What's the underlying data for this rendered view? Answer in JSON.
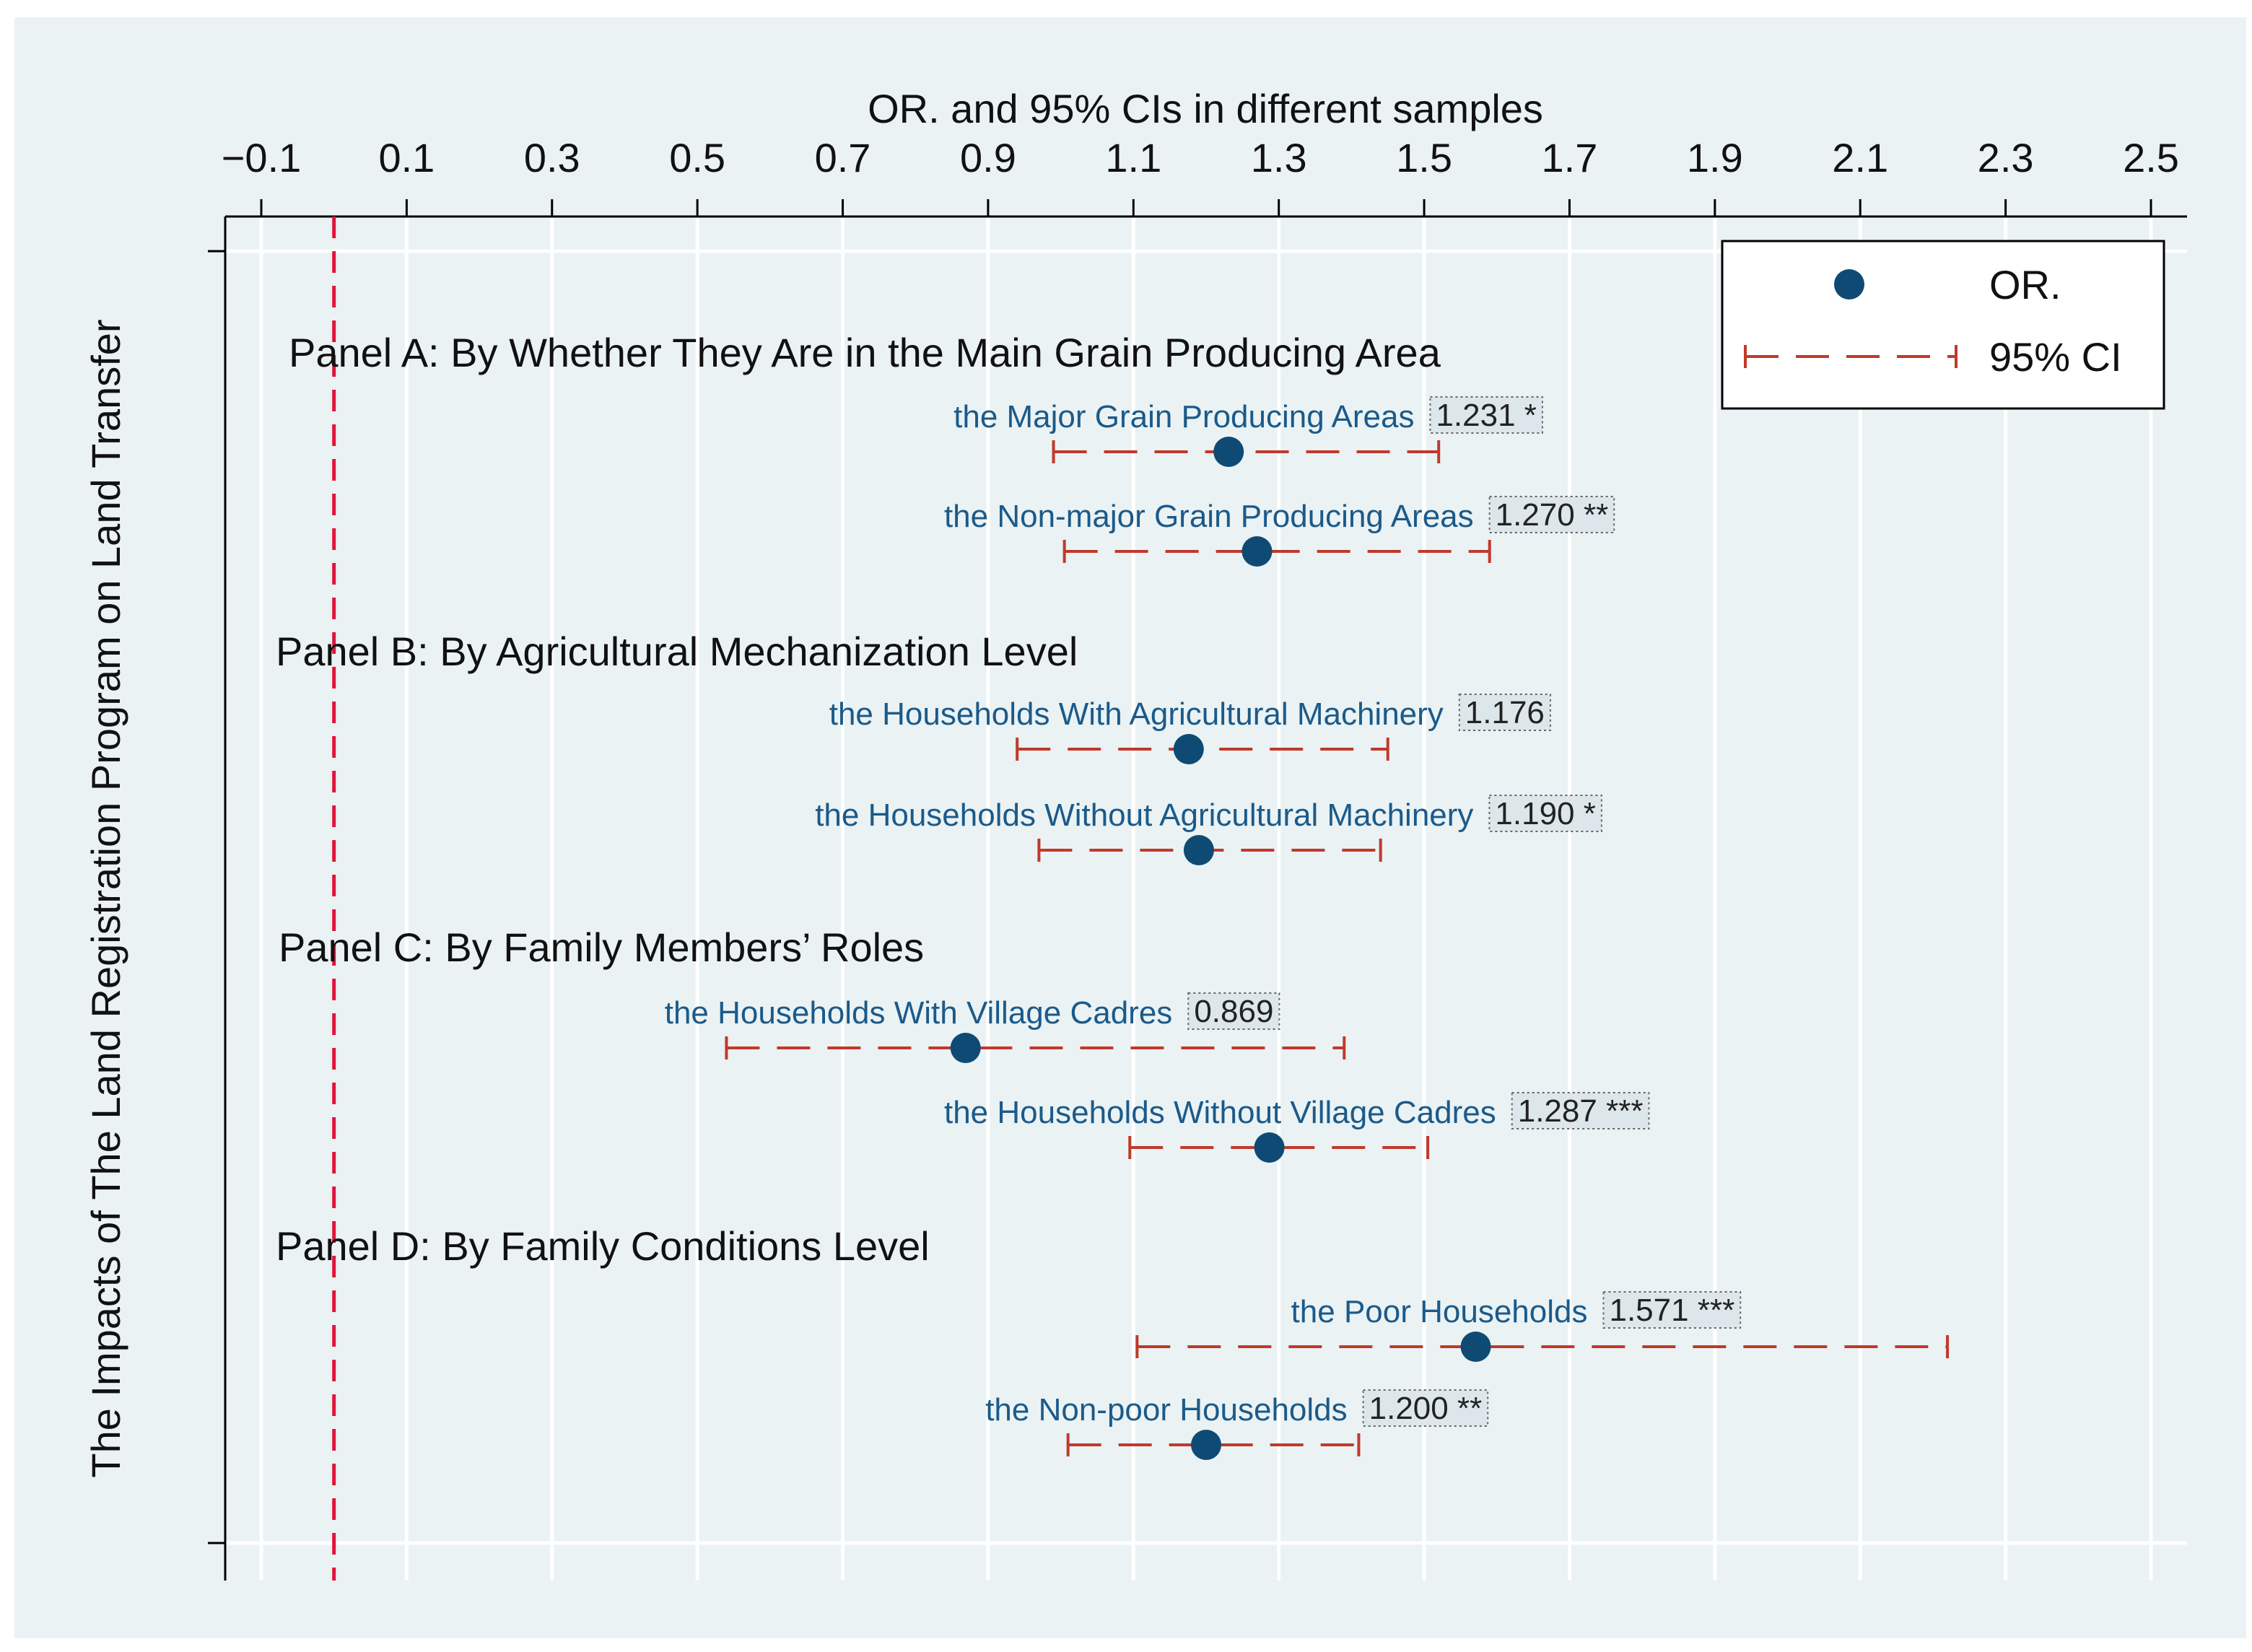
{
  "chart_data": {
    "type": "scatter",
    "subtype": "forest-plot (odds ratios with 95% confidence intervals)",
    "title": "OR. and 95% CIs in different samples",
    "ylabel": "The Impacts of The Land Registration Program on Land Transfer",
    "xlim": [
      -0.15,
      2.5
    ],
    "x_ticks": [
      "−0.1",
      "0.1",
      "0.3",
      "0.5",
      "0.7",
      "0.9",
      "1.1",
      "1.3",
      "1.5",
      "1.7",
      "1.9",
      "2.1",
      "2.3",
      "2.5"
    ],
    "x_tick_values": [
      -0.1,
      0.1,
      0.3,
      0.5,
      0.7,
      0.9,
      1.1,
      1.3,
      1.5,
      1.7,
      1.9,
      2.1,
      2.3,
      2.5
    ],
    "reference_line": 0,
    "legend": {
      "position": "top-right",
      "entries": [
        {
          "label": "OR.",
          "marker": "circle"
        },
        {
          "label": "95% CI",
          "marker": "dashed-capped-line"
        }
      ]
    },
    "colors": {
      "point": "#0e4a74",
      "ci": "#c0392b",
      "ref_line": "#e0143c",
      "row_label": "#1b5a8a",
      "plot_bg": "#eaf2f3",
      "outer_bg": "#eaf2f3",
      "grid": "#ffffff"
    },
    "panels": [
      {
        "title": "Panel A: By Whether They Are in the Main Grain Producing Area",
        "rows": [
          {
            "label": "the Major Grain Producing Areas",
            "or": 1.231,
            "annotation": "1.231 *",
            "ci_low": 0.99,
            "ci_high": 1.52
          },
          {
            "label": "the Non-major Grain Producing Areas",
            "or": 1.27,
            "annotation": "1.270 **",
            "ci_low": 1.005,
            "ci_high": 1.59
          }
        ]
      },
      {
        "title": "Panel B: By Agricultural Mechanization Level",
        "rows": [
          {
            "label": "the Households With Agricultural Machinery",
            "or": 1.176,
            "annotation": "1.176",
            "ci_low": 0.94,
            "ci_high": 1.45
          },
          {
            "label": "the Households Without Agricultural Machinery",
            "or": 1.19,
            "annotation": "1.190 *",
            "ci_low": 0.97,
            "ci_high": 1.44
          }
        ]
      },
      {
        "title": "Panel C: By Family Members’ Roles",
        "rows": [
          {
            "label": "the Households With Village Cadres",
            "or": 0.869,
            "annotation": "0.869",
            "ci_low": 0.54,
            "ci_high": 1.39
          },
          {
            "label": "the Households Without Village Cadres",
            "or": 1.287,
            "annotation": "1.287 ***",
            "ci_low": 1.095,
            "ci_high": 1.505
          }
        ]
      },
      {
        "title": "Panel D: By Family Conditions Level",
        "rows": [
          {
            "label": "the Poor Households",
            "or": 1.571,
            "annotation": "1.571 ***",
            "ci_low": 1.105,
            "ci_high": 2.22
          },
          {
            "label": "the Non-poor Households",
            "or": 1.2,
            "annotation": "1.200 **",
            "ci_low": 1.01,
            "ci_high": 1.41
          }
        ]
      }
    ]
  }
}
